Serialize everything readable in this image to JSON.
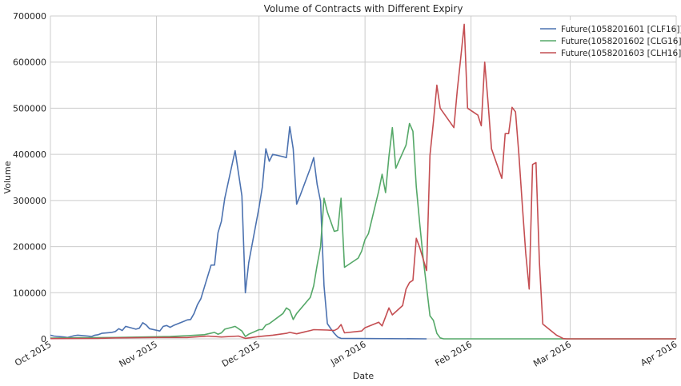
{
  "chart_data": {
    "type": "line",
    "title": "Volume of Contracts with Different Expiry",
    "xlabel": "Date",
    "ylabel": "Volume",
    "x_ticks": [
      "Oct 2015",
      "Nov 2015",
      "Dec 2015",
      "Jan 2016",
      "Feb 2016",
      "Mar 2016",
      "Apr 2016"
    ],
    "x_tick_dates": [
      "2015-10-01",
      "2015-11-01",
      "2015-12-01",
      "2016-01-01",
      "2016-02-01",
      "2016-03-01",
      "2016-04-01"
    ],
    "y_ticks": [
      0,
      100000,
      200000,
      300000,
      400000,
      500000,
      600000,
      700000
    ],
    "y_tick_labels": [
      "0",
      "100000",
      "200000",
      "300000",
      "400000",
      "500000",
      "600000",
      "700000"
    ],
    "xlim": [
      "2015-10-01",
      "2016-04-01"
    ],
    "ylim": [
      0,
      700000
    ],
    "grid": true,
    "legend_position": "top-right",
    "series": [
      {
        "name": "Future(1058201601 [CLF16])",
        "color": "#4c72b0",
        "points": [
          [
            "2015-10-01",
            8000
          ],
          [
            "2015-10-02",
            6000
          ],
          [
            "2015-10-05",
            4000
          ],
          [
            "2015-10-06",
            3000
          ],
          [
            "2015-10-07",
            5000
          ],
          [
            "2015-10-08",
            7000
          ],
          [
            "2015-10-09",
            8000
          ],
          [
            "2015-10-12",
            6000
          ],
          [
            "2015-10-13",
            5000
          ],
          [
            "2015-10-14",
            8000
          ],
          [
            "2015-10-15",
            9000
          ],
          [
            "2015-10-16",
            12000
          ],
          [
            "2015-10-19",
            14000
          ],
          [
            "2015-10-20",
            16000
          ],
          [
            "2015-10-21",
            22000
          ],
          [
            "2015-10-22",
            18000
          ],
          [
            "2015-10-23",
            27000
          ],
          [
            "2015-10-26",
            21000
          ],
          [
            "2015-10-27",
            23000
          ],
          [
            "2015-10-28",
            35000
          ],
          [
            "2015-10-29",
            30000
          ],
          [
            "2015-10-30",
            22000
          ],
          [
            "2015-11-02",
            17000
          ],
          [
            "2015-11-03",
            27000
          ],
          [
            "2015-11-04",
            29000
          ],
          [
            "2015-11-05",
            25000
          ],
          [
            "2015-11-06",
            29000
          ],
          [
            "2015-11-09",
            38000
          ],
          [
            "2015-11-10",
            41000
          ],
          [
            "2015-11-11",
            42000
          ],
          [
            "2015-11-12",
            55000
          ],
          [
            "2015-11-13",
            74000
          ],
          [
            "2015-11-14",
            87000
          ],
          [
            "2015-11-17",
            160000
          ],
          [
            "2015-11-18",
            160000
          ],
          [
            "2015-11-19",
            230000
          ],
          [
            "2015-11-20",
            255000
          ],
          [
            "2015-11-21",
            305000
          ],
          [
            "2015-11-24",
            408000
          ],
          [
            "2015-11-26",
            310000
          ],
          [
            "2015-11-27",
            100000
          ],
          [
            "2015-11-28",
            165000
          ],
          [
            "2015-12-01",
            285000
          ],
          [
            "2015-12-02",
            330000
          ],
          [
            "2015-12-03",
            412000
          ],
          [
            "2015-12-04",
            385000
          ],
          [
            "2015-12-05",
            400000
          ],
          [
            "2015-12-08",
            395000
          ],
          [
            "2015-12-09",
            393000
          ],
          [
            "2015-12-10",
            460000
          ],
          [
            "2015-12-11",
            412000
          ],
          [
            "2015-12-12",
            292000
          ],
          [
            "2015-12-13",
            310000
          ],
          [
            "2015-12-16",
            370000
          ],
          [
            "2015-12-17",
            393000
          ],
          [
            "2015-12-18",
            335000
          ],
          [
            "2015-12-19",
            298000
          ],
          [
            "2015-12-20",
            115000
          ],
          [
            "2015-12-21",
            33000
          ],
          [
            "2015-12-22",
            22000
          ],
          [
            "2015-12-23",
            12000
          ],
          [
            "2015-12-24",
            4000
          ],
          [
            "2015-12-25",
            1000
          ],
          [
            "2016-01-19",
            0
          ]
        ]
      },
      {
        "name": "Future(1058201602 [CLG16])",
        "color": "#55a868",
        "points": [
          [
            "2015-10-01",
            1500
          ],
          [
            "2015-10-10",
            2500
          ],
          [
            "2015-10-20",
            3000
          ],
          [
            "2015-10-28",
            4000
          ],
          [
            "2015-11-05",
            5000
          ],
          [
            "2015-11-10",
            7000
          ],
          [
            "2015-11-15",
            9000
          ],
          [
            "2015-11-18",
            14000
          ],
          [
            "2015-11-19",
            10000
          ],
          [
            "2015-11-20",
            13000
          ],
          [
            "2015-11-21",
            21000
          ],
          [
            "2015-11-23",
            25000
          ],
          [
            "2015-11-24",
            27000
          ],
          [
            "2015-11-26",
            17000
          ],
          [
            "2015-11-27",
            5000
          ],
          [
            "2015-11-28",
            10000
          ],
          [
            "2015-12-01",
            20000
          ],
          [
            "2015-12-02",
            20000
          ],
          [
            "2015-12-03",
            30000
          ],
          [
            "2015-12-04",
            33000
          ],
          [
            "2015-12-08",
            55000
          ],
          [
            "2015-12-09",
            67000
          ],
          [
            "2015-12-10",
            62000
          ],
          [
            "2015-12-11",
            42000
          ],
          [
            "2015-12-12",
            55000
          ],
          [
            "2015-12-16",
            90000
          ],
          [
            "2015-12-17",
            115000
          ],
          [
            "2015-12-18",
            160000
          ],
          [
            "2015-12-19",
            200000
          ],
          [
            "2015-12-20",
            305000
          ],
          [
            "2015-12-21",
            275000
          ],
          [
            "2015-12-23",
            233000
          ],
          [
            "2015-12-24",
            235000
          ],
          [
            "2015-12-25",
            305000
          ],
          [
            "2015-12-26",
            155000
          ],
          [
            "2015-12-30",
            175000
          ],
          [
            "2015-12-31",
            190000
          ],
          [
            "2016-01-01",
            215000
          ],
          [
            "2016-01-02",
            228000
          ],
          [
            "2016-01-05",
            320000
          ],
          [
            "2016-01-06",
            357000
          ],
          [
            "2016-01-07",
            317000
          ],
          [
            "2016-01-08",
            395000
          ],
          [
            "2016-01-09",
            458000
          ],
          [
            "2016-01-10",
            370000
          ],
          [
            "2016-01-13",
            420000
          ],
          [
            "2016-01-14",
            467000
          ],
          [
            "2016-01-15",
            450000
          ],
          [
            "2016-01-16",
            330000
          ],
          [
            "2016-01-17",
            250000
          ],
          [
            "2016-01-18",
            175000
          ],
          [
            "2016-01-20",
            50000
          ],
          [
            "2016-01-21",
            40000
          ],
          [
            "2016-01-22",
            12000
          ],
          [
            "2016-01-23",
            2000
          ],
          [
            "2016-01-24",
            0
          ],
          [
            "2016-04-01",
            0
          ]
        ]
      },
      {
        "name": "Future(1058201603 [CLH16])",
        "color": "#c44e52",
        "points": [
          [
            "2015-10-01",
            500
          ],
          [
            "2015-10-15",
            1000
          ],
          [
            "2015-10-20",
            2000
          ],
          [
            "2015-11-01",
            3000
          ],
          [
            "2015-11-10",
            3000
          ],
          [
            "2015-11-16",
            6000
          ],
          [
            "2015-11-20",
            4000
          ],
          [
            "2015-11-25",
            6000
          ],
          [
            "2015-11-27",
            1000
          ],
          [
            "2015-12-01",
            5000
          ],
          [
            "2015-12-05",
            8000
          ],
          [
            "2015-12-09",
            12000
          ],
          [
            "2015-12-10",
            14000
          ],
          [
            "2015-12-12",
            11000
          ],
          [
            "2015-12-16",
            18000
          ],
          [
            "2015-12-17",
            20000
          ],
          [
            "2015-12-21",
            19000
          ],
          [
            "2015-12-23",
            18000
          ],
          [
            "2015-12-24",
            22000
          ],
          [
            "2015-12-25",
            31000
          ],
          [
            "2015-12-26",
            13000
          ],
          [
            "2015-12-31",
            17000
          ],
          [
            "2016-01-01",
            24000
          ],
          [
            "2016-01-05",
            36000
          ],
          [
            "2016-01-06",
            28000
          ],
          [
            "2016-01-08",
            67000
          ],
          [
            "2016-01-09",
            52000
          ],
          [
            "2016-01-12",
            72000
          ],
          [
            "2016-01-13",
            108000
          ],
          [
            "2016-01-14",
            122000
          ],
          [
            "2016-01-15",
            127000
          ],
          [
            "2016-01-16",
            218000
          ],
          [
            "2016-01-17",
            198000
          ],
          [
            "2016-01-19",
            148000
          ],
          [
            "2016-01-20",
            398000
          ],
          [
            "2016-01-21",
            470000
          ],
          [
            "2016-01-22",
            550000
          ],
          [
            "2016-01-23",
            500000
          ],
          [
            "2016-01-27",
            458000
          ],
          [
            "2016-01-28",
            540000
          ],
          [
            "2016-01-29",
            610000
          ],
          [
            "2016-01-30",
            682000
          ],
          [
            "2016-01-31",
            500000
          ],
          [
            "2016-02-03",
            485000
          ],
          [
            "2016-02-04",
            462000
          ],
          [
            "2016-02-05",
            600000
          ],
          [
            "2016-02-06",
            510000
          ],
          [
            "2016-02-07",
            412000
          ],
          [
            "2016-02-10",
            348000
          ],
          [
            "2016-02-11",
            445000
          ],
          [
            "2016-02-12",
            445000
          ],
          [
            "2016-02-13",
            502000
          ],
          [
            "2016-02-14",
            492000
          ],
          [
            "2016-02-15",
            400000
          ],
          [
            "2016-02-16",
            290000
          ],
          [
            "2016-02-17",
            185000
          ],
          [
            "2016-02-18",
            108000
          ],
          [
            "2016-02-19",
            378000
          ],
          [
            "2016-02-20",
            382000
          ],
          [
            "2016-02-21",
            165000
          ],
          [
            "2016-02-22",
            32000
          ],
          [
            "2016-02-24",
            20000
          ],
          [
            "2016-02-26",
            8000
          ],
          [
            "2016-02-28",
            500
          ],
          [
            "2016-02-29",
            0
          ],
          [
            "2016-04-01",
            0
          ]
        ]
      }
    ]
  }
}
